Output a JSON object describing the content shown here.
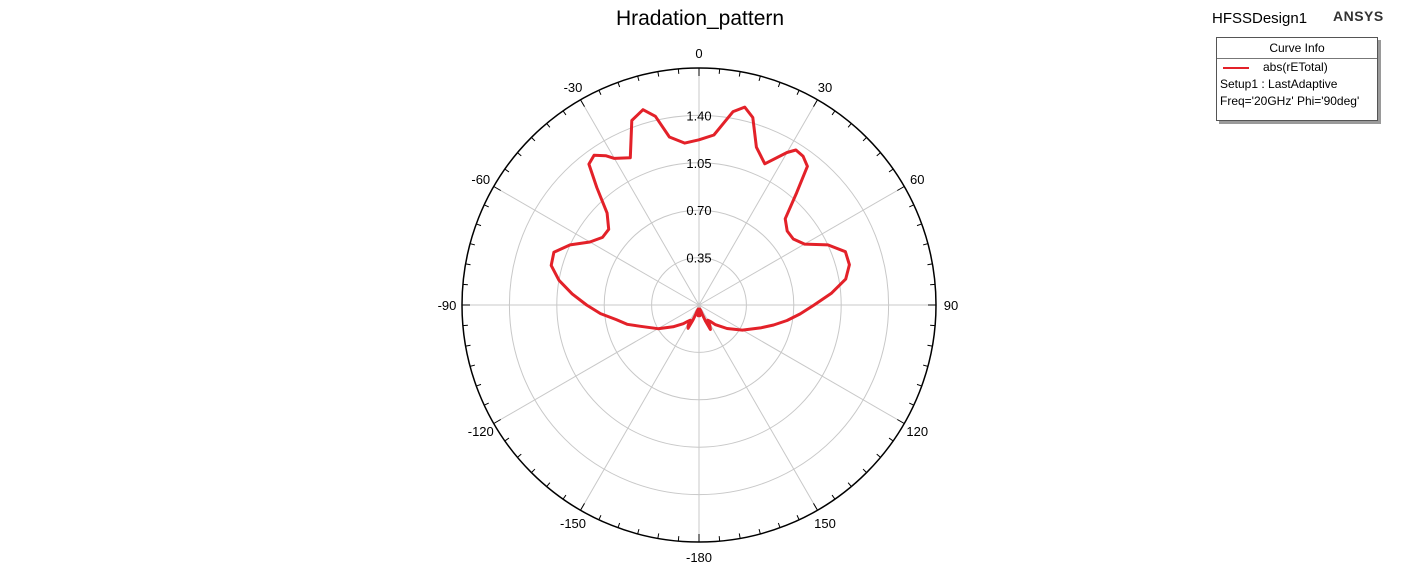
{
  "chart_data": {
    "type": "polar-line",
    "title": "Hradation_pattern",
    "design_name": "HFSSDesign1",
    "brand": "ANSYS",
    "angle_unit": "deg",
    "zero_direction": "top",
    "angle_ticks": [
      0,
      30,
      60,
      90,
      120,
      150,
      -180,
      -150,
      -120,
      -90,
      -60,
      -30
    ],
    "radial_ticks": [
      "0.35",
      "0.70",
      "1.05",
      "1.40"
    ],
    "radial_range": [
      0,
      1.75
    ],
    "grid": true,
    "legend": {
      "header": "Curve Info",
      "entries": [
        "abs(rETotal)",
        "Setup1 : LastAdaptive",
        "Freq='20GHz' Phi='90deg'"
      ],
      "placement": "top-right"
    },
    "series": [
      {
        "name": "abs(rETotal)",
        "color": "#e32129",
        "theta": [
          0,
          5,
          10,
          13,
          16,
          20,
          25,
          30,
          32,
          35,
          38,
          41,
          45,
          50,
          55,
          60,
          65,
          70,
          75,
          80,
          85,
          90,
          95,
          100,
          105,
          110,
          120,
          130,
          140,
          145,
          150,
          152,
          155,
          158,
          161,
          164,
          167,
          170,
          173,
          176,
          178,
          180,
          182,
          184,
          187,
          190,
          193,
          196,
          199,
          202,
          205,
          208,
          210,
          215,
          220,
          230,
          240,
          250,
          255,
          260,
          265,
          270,
          275,
          280,
          285,
          290,
          295,
          300,
          305,
          310,
          315,
          319,
          322,
          325,
          328,
          330,
          335,
          340,
          344,
          347,
          350,
          355,
          360
        ],
        "r": [
          1.22,
          1.26,
          1.45,
          1.5,
          1.44,
          1.24,
          1.15,
          1.3,
          1.35,
          1.34,
          1.3,
          1.1,
          0.9,
          0.85,
          0.85,
          0.9,
          1.05,
          1.15,
          1.15,
          1.1,
          0.98,
          0.85,
          0.75,
          0.66,
          0.57,
          0.49,
          0.37,
          0.27,
          0.19,
          0.15,
          0.13,
          0.17,
          0.2,
          0.13,
          0.07,
          0.04,
          0.05,
          0.03,
          0.05,
          0.08,
          0.04,
          0.07,
          0.04,
          0.08,
          0.05,
          0.03,
          0.05,
          0.04,
          0.07,
          0.12,
          0.19,
          0.17,
          0.13,
          0.15,
          0.18,
          0.25,
          0.35,
          0.46,
          0.55,
          0.62,
          0.73,
          0.83,
          0.94,
          1.05,
          1.13,
          1.14,
          1.05,
          0.93,
          0.87,
          0.87,
          0.96,
          1.15,
          1.32,
          1.35,
          1.3,
          1.25,
          1.2,
          1.45,
          1.5,
          1.43,
          1.26,
          1.2,
          1.22
        ]
      }
    ]
  }
}
